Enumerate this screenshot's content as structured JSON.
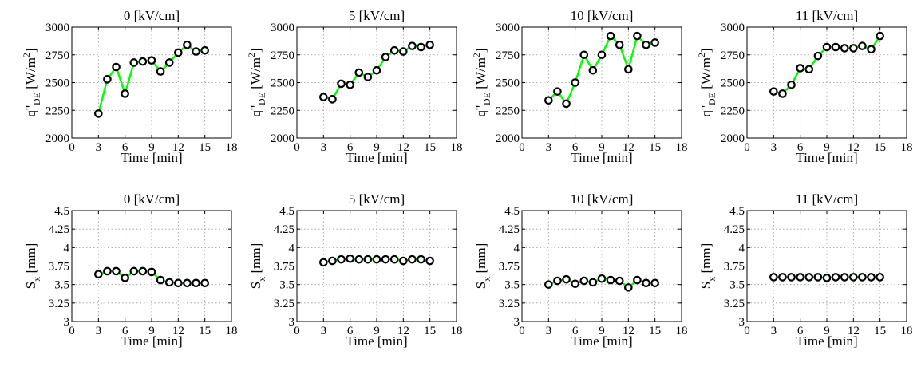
{
  "chart_data": [
    {
      "type": "line",
      "title": "0 [kV/cm]",
      "xlabel": "Time [min]",
      "ylabel": "q''DE [W/m2]",
      "ylabel_main": "q''",
      "ylabel_sub": "DE",
      "ylabel_unit": "[W/m",
      "ylabel_sup": "2",
      "ylabel_close": "]",
      "x": [
        3,
        4,
        5,
        6,
        7,
        8,
        9,
        10,
        11,
        12,
        13,
        14,
        15
      ],
      "values": [
        2220,
        2530,
        2640,
        2400,
        2680,
        2690,
        2700,
        2600,
        2680,
        2770,
        2840,
        2780,
        2790
      ],
      "xlim": [
        0,
        18
      ],
      "xticks": [
        0,
        3,
        6,
        9,
        12,
        15,
        18
      ],
      "ylim": [
        2000,
        3000
      ],
      "yticks": [
        2000,
        2250,
        2500,
        2750,
        3000
      ],
      "line_color": "#00ff00",
      "marker_color": "#000000",
      "grid": true
    },
    {
      "type": "line",
      "title": "5 [kV/cm]",
      "xlabel": "Time [min]",
      "ylabel": "q''DE [W/m2]",
      "ylabel_main": "q''",
      "ylabel_sub": "DE",
      "ylabel_unit": "[W/m",
      "ylabel_sup": "2",
      "ylabel_close": "]",
      "x": [
        3,
        4,
        5,
        6,
        7,
        8,
        9,
        10,
        11,
        12,
        13,
        14,
        15
      ],
      "values": [
        2370,
        2350,
        2490,
        2480,
        2590,
        2550,
        2610,
        2730,
        2790,
        2780,
        2830,
        2820,
        2840
      ],
      "xlim": [
        0,
        18
      ],
      "xticks": [
        0,
        3,
        6,
        9,
        12,
        15,
        18
      ],
      "ylim": [
        2000,
        3000
      ],
      "yticks": [
        2000,
        2250,
        2500,
        2750,
        3000
      ],
      "line_color": "#00ff00",
      "marker_color": "#000000",
      "grid": true
    },
    {
      "type": "line",
      "title": "10 [kV/cm]",
      "xlabel": "Time [min]",
      "ylabel": "q''DE [W/m2]",
      "ylabel_main": "q''",
      "ylabel_sub": "DE",
      "ylabel_unit": "[W/m",
      "ylabel_sup": "2",
      "ylabel_close": "]",
      "x": [
        3,
        4,
        5,
        6,
        7,
        8,
        9,
        10,
        11,
        12,
        13,
        14,
        15
      ],
      "values": [
        2340,
        2420,
        2310,
        2500,
        2750,
        2610,
        2750,
        2920,
        2840,
        2620,
        2920,
        2840,
        2860
      ],
      "xlim": [
        0,
        18
      ],
      "xticks": [
        0,
        3,
        6,
        9,
        12,
        15,
        18
      ],
      "ylim": [
        2000,
        3000
      ],
      "yticks": [
        2000,
        2250,
        2500,
        2750,
        3000
      ],
      "line_color": "#00ff00",
      "marker_color": "#000000",
      "grid": true
    },
    {
      "type": "line",
      "title": "11 [kV/cm]",
      "xlabel": "Time [min]",
      "ylabel": "q''DE [W/m2]",
      "ylabel_main": "q''",
      "ylabel_sub": "DE",
      "ylabel_unit": "[W/m",
      "ylabel_sup": "2",
      "ylabel_close": "]",
      "x": [
        3,
        4,
        5,
        6,
        7,
        8,
        9,
        10,
        11,
        12,
        13,
        14,
        15
      ],
      "values": [
        2420,
        2400,
        2480,
        2630,
        2620,
        2740,
        2820,
        2820,
        2810,
        2810,
        2830,
        2800,
        2920
      ],
      "xlim": [
        0,
        18
      ],
      "xticks": [
        0,
        3,
        6,
        9,
        12,
        15,
        18
      ],
      "ylim": [
        2000,
        3000
      ],
      "yticks": [
        2000,
        2250,
        2500,
        2750,
        3000
      ],
      "line_color": "#00ff00",
      "marker_color": "#000000",
      "grid": true
    },
    {
      "type": "line",
      "title": "0 [kV/cm]",
      "xlabel": "Time [min]",
      "ylabel": "Sx [mm]",
      "ylabel_main": "S",
      "ylabel_sub": "x",
      "ylabel_unit": "[mm]",
      "ylabel_sup": "",
      "ylabel_close": "",
      "x": [
        3,
        4,
        5,
        6,
        7,
        8,
        9,
        10,
        11,
        12,
        13,
        14,
        15
      ],
      "values": [
        3.64,
        3.68,
        3.68,
        3.59,
        3.68,
        3.68,
        3.67,
        3.56,
        3.53,
        3.52,
        3.52,
        3.52,
        3.52
      ],
      "xlim": [
        0,
        18
      ],
      "xticks": [
        0,
        3,
        6,
        9,
        12,
        15,
        18
      ],
      "ylim": [
        3,
        4.5
      ],
      "yticks": [
        3,
        3.25,
        3.5,
        3.75,
        4,
        4.25,
        4.5
      ],
      "line_color": "#00ff00",
      "marker_color": "#000000",
      "grid": true
    },
    {
      "type": "line",
      "title": "5 [kV/cm]",
      "xlabel": "Time [min]",
      "ylabel": "Sx [mm]",
      "ylabel_main": "S",
      "ylabel_sub": "x",
      "ylabel_unit": "[mm]",
      "ylabel_sup": "",
      "ylabel_close": "",
      "x": [
        3,
        4,
        5,
        6,
        7,
        8,
        9,
        10,
        11,
        12,
        13,
        14,
        15
      ],
      "values": [
        3.8,
        3.82,
        3.84,
        3.85,
        3.84,
        3.84,
        3.84,
        3.84,
        3.84,
        3.82,
        3.84,
        3.84,
        3.82
      ],
      "xlim": [
        0,
        18
      ],
      "xticks": [
        0,
        3,
        6,
        9,
        12,
        15,
        18
      ],
      "ylim": [
        3,
        4.5
      ],
      "yticks": [
        3,
        3.25,
        3.5,
        3.75,
        4,
        4.25,
        4.5
      ],
      "line_color": "#00ff00",
      "marker_color": "#000000",
      "grid": true
    },
    {
      "type": "line",
      "title": "10 [kV/cm]",
      "xlabel": "Time [min]",
      "ylabel": "Sx [mm]",
      "ylabel_main": "S",
      "ylabel_sub": "x",
      "ylabel_unit": "[mm]",
      "ylabel_sup": "",
      "ylabel_close": "",
      "x": [
        3,
        4,
        5,
        6,
        7,
        8,
        9,
        10,
        11,
        12,
        13,
        14,
        15
      ],
      "values": [
        3.5,
        3.55,
        3.57,
        3.51,
        3.55,
        3.53,
        3.58,
        3.56,
        3.55,
        3.46,
        3.56,
        3.52,
        3.52
      ],
      "xlim": [
        0,
        18
      ],
      "xticks": [
        0,
        3,
        6,
        9,
        12,
        15,
        18
      ],
      "ylim": [
        3,
        4.5
      ],
      "yticks": [
        3,
        3.25,
        3.5,
        3.75,
        4,
        4.25,
        4.5
      ],
      "line_color": "#00ff00",
      "marker_color": "#000000",
      "grid": true
    },
    {
      "type": "line",
      "title": "11 [kV/cm]",
      "xlabel": "Time [min]",
      "ylabel": "Sx [mm]",
      "ylabel_main": "S",
      "ylabel_sub": "x",
      "ylabel_unit": "[mm]",
      "ylabel_sup": "",
      "ylabel_close": "",
      "x": [
        3,
        4,
        5,
        6,
        7,
        8,
        9,
        10,
        11,
        12,
        13,
        14,
        15
      ],
      "values": [
        3.6,
        3.6,
        3.6,
        3.6,
        3.6,
        3.6,
        3.59,
        3.6,
        3.6,
        3.6,
        3.6,
        3.6,
        3.6
      ],
      "xlim": [
        0,
        18
      ],
      "xticks": [
        0,
        3,
        6,
        9,
        12,
        15,
        18
      ],
      "ylim": [
        3,
        4.5
      ],
      "yticks": [
        3,
        3.25,
        3.5,
        3.75,
        4,
        4.25,
        4.5
      ],
      "line_color": "#00ff00",
      "marker_color": "#000000",
      "grid": true
    }
  ]
}
